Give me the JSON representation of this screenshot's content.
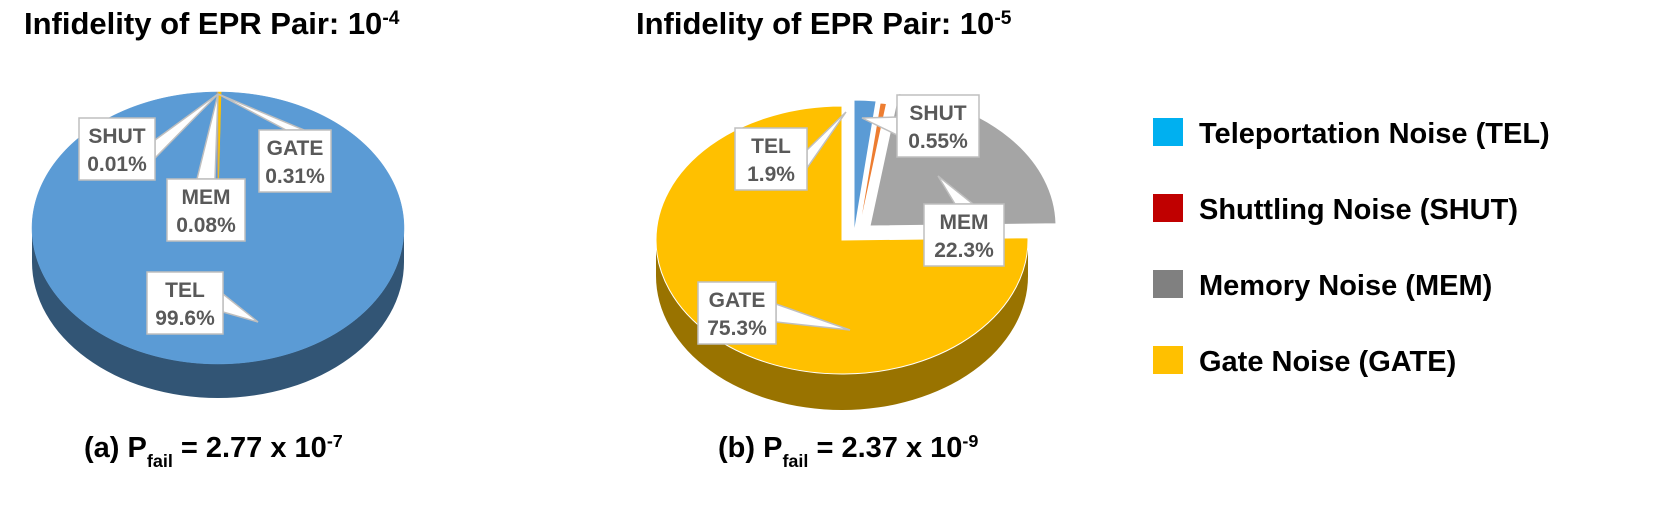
{
  "colors": {
    "TEL": "#5B9BD5",
    "SHUT": "#ED7D31",
    "MEM": "#A5A5A5",
    "GATE": "#FFC000",
    "legend_TEL": "#00B0F0",
    "legend_SHUT": "#C00000",
    "legend_MEM": "#808080",
    "legend_GATE": "#FFC000",
    "label_text": "#595959",
    "label_border": "#BFBFBF"
  },
  "legend": [
    {
      "key": "TEL",
      "label": "Teleportation Noise (TEL)"
    },
    {
      "key": "SHUT",
      "label": "Shuttling Noise (SHUT)"
    },
    {
      "key": "MEM",
      "label": "Memory Noise (MEM)"
    },
    {
      "key": "GATE",
      "label": "Gate Noise (GATE)"
    }
  ],
  "chart_data": [
    {
      "type": "pie",
      "title": {
        "base": "Infidelity of EPR Pair: 10",
        "exp": "-4"
      },
      "caption": {
        "prefix": "(a) P",
        "sub": "fail",
        "mid": " = 2.77 x 10",
        "exp": "-7"
      },
      "slices": [
        {
          "key": "GATE",
          "name": "GATE",
          "value": 0.31,
          "label": "0.31%"
        },
        {
          "key": "TEL",
          "name": "TEL",
          "value": 99.6,
          "label": "99.6%"
        },
        {
          "key": "SHUT",
          "name": "SHUT",
          "value": 0.01,
          "label": "0.01%"
        },
        {
          "key": "MEM",
          "name": "MEM",
          "value": 0.08,
          "label": "0.08%"
        }
      ]
    },
    {
      "type": "pie",
      "title": {
        "base": "Infidelity of EPR Pair: 10",
        "exp": "-5"
      },
      "caption": {
        "prefix": "(b) P",
        "sub": "fail",
        "mid": " = 2.37 x 10",
        "exp": "-9"
      },
      "slices": [
        {
          "key": "TEL",
          "name": "TEL",
          "value": 1.9,
          "label": "1.9%"
        },
        {
          "key": "SHUT",
          "name": "SHUT",
          "value": 0.55,
          "label": "0.55%"
        },
        {
          "key": "MEM",
          "name": "MEM",
          "value": 22.3,
          "label": "22.3%"
        },
        {
          "key": "GATE",
          "name": "GATE",
          "value": 75.3,
          "label": "75.3%"
        }
      ]
    }
  ]
}
